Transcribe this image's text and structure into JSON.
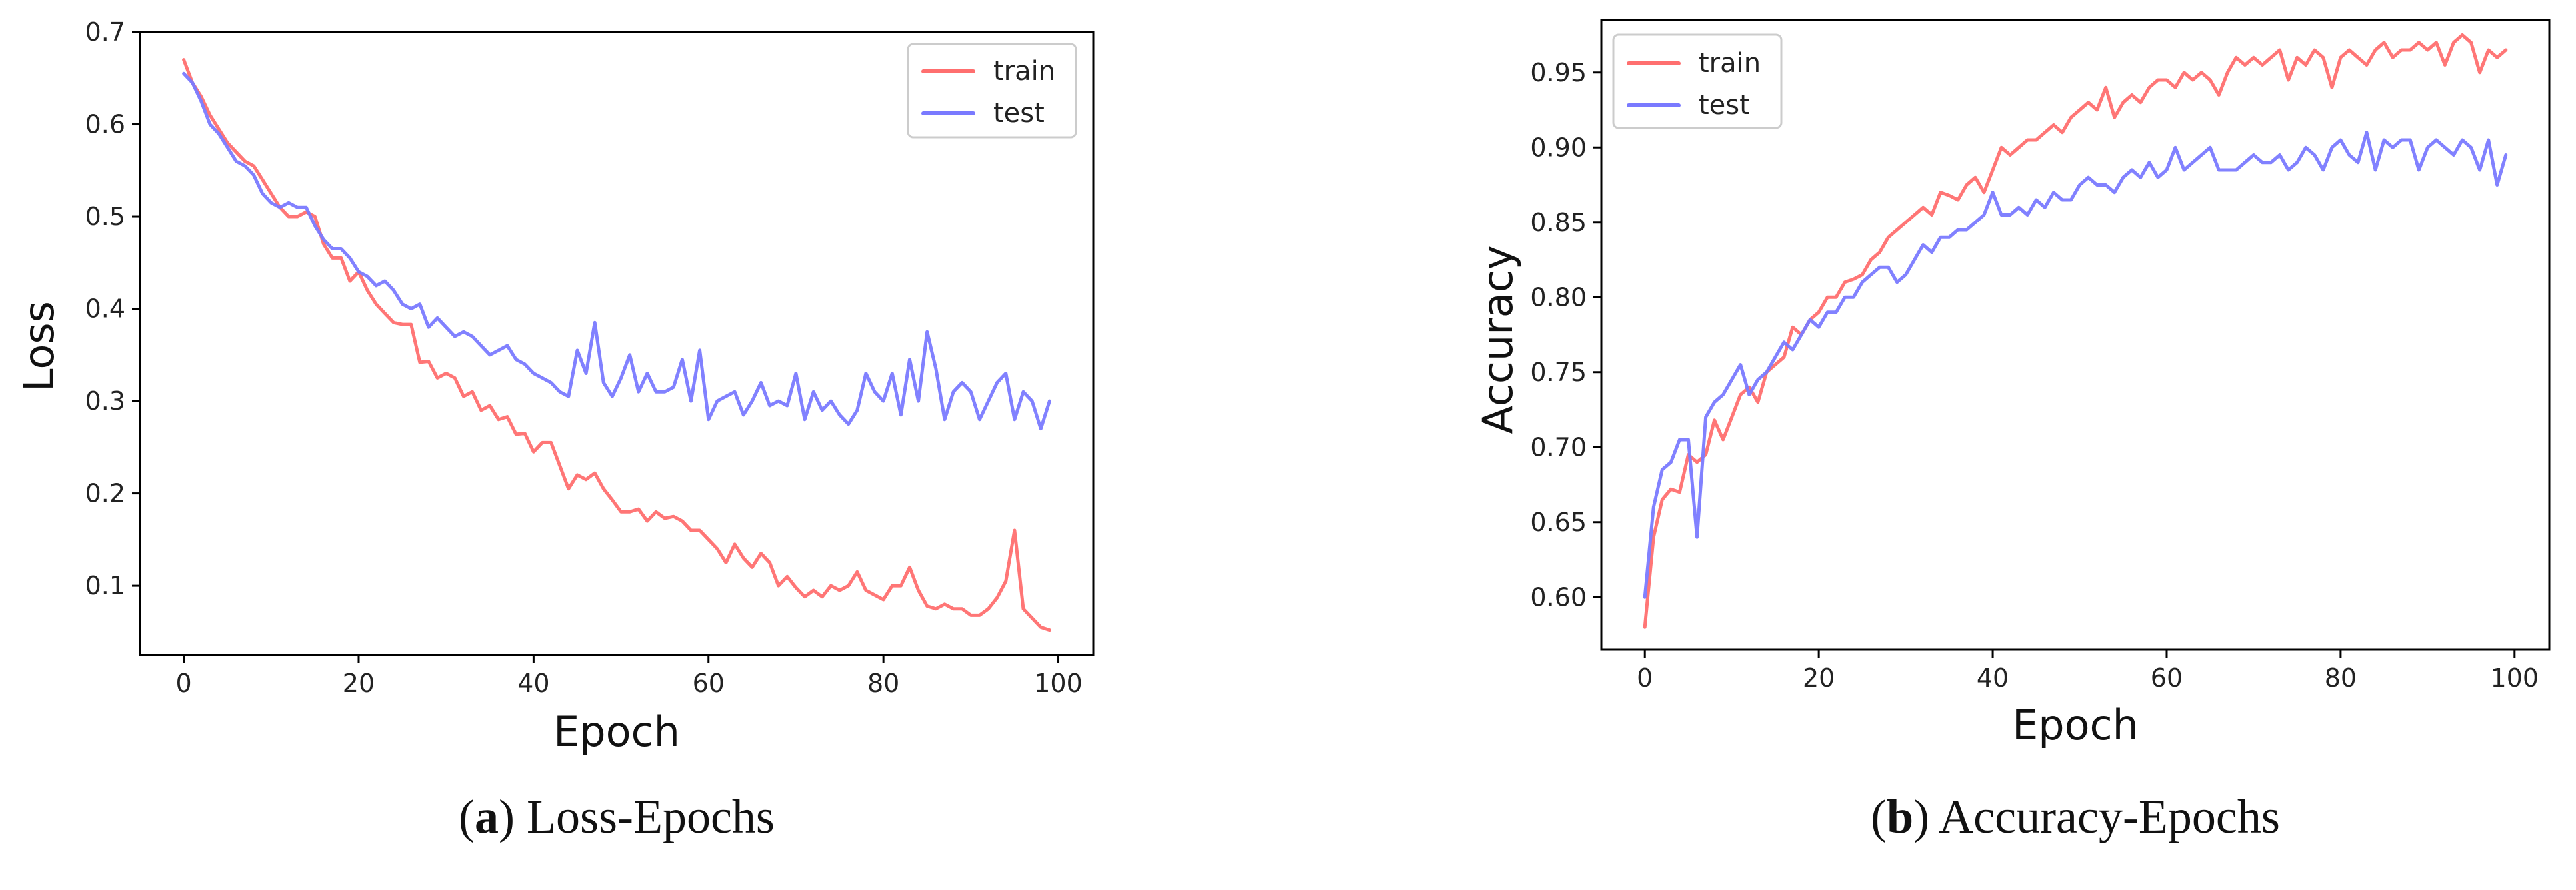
{
  "chart_data": [
    {
      "type": "line",
      "caption_letter": "a",
      "caption_text": "Loss-Epochs",
      "xlabel": "Epoch",
      "ylabel": "Loss",
      "xlim": [
        -5,
        104
      ],
      "ylim": [
        0.025,
        0.7
      ],
      "xticks": [
        0,
        20,
        40,
        60,
        80,
        100
      ],
      "yticks": [
        0.1,
        0.2,
        0.3,
        0.4,
        0.5,
        0.6,
        0.7
      ],
      "grid": false,
      "legend_position": "top-right",
      "series": [
        {
          "name": "train",
          "color": "#ff6f6f",
          "x": [
            0,
            1,
            2,
            3,
            4,
            5,
            6,
            7,
            8,
            9,
            10,
            11,
            12,
            13,
            14,
            15,
            16,
            17,
            18,
            19,
            20,
            21,
            22,
            23,
            24,
            25,
            26,
            27,
            28,
            29,
            30,
            31,
            32,
            33,
            34,
            35,
            36,
            37,
            38,
            39,
            40,
            41,
            42,
            43,
            44,
            45,
            46,
            47,
            48,
            49,
            50,
            51,
            52,
            53,
            54,
            55,
            56,
            57,
            58,
            59,
            60,
            61,
            62,
            63,
            64,
            65,
            66,
            67,
            68,
            69,
            70,
            71,
            72,
            73,
            74,
            75,
            76,
            77,
            78,
            79,
            80,
            81,
            82,
            83,
            84,
            85,
            86,
            87,
            88,
            89,
            90,
            91,
            92,
            93,
            94,
            95,
            96,
            97,
            98,
            99
          ],
          "values": [
            0.67,
            0.645,
            0.63,
            0.61,
            0.595,
            0.58,
            0.57,
            0.56,
            0.555,
            0.54,
            0.525,
            0.51,
            0.5,
            0.5,
            0.505,
            0.5,
            0.47,
            0.455,
            0.455,
            0.43,
            0.44,
            0.42,
            0.405,
            0.395,
            0.385,
            0.383,
            0.383,
            0.342,
            0.343,
            0.325,
            0.33,
            0.325,
            0.305,
            0.31,
            0.29,
            0.295,
            0.28,
            0.283,
            0.264,
            0.265,
            0.245,
            0.255,
            0.255,
            0.23,
            0.205,
            0.22,
            0.215,
            0.222,
            0.205,
            0.193,
            0.18,
            0.18,
            0.183,
            0.17,
            0.18,
            0.173,
            0.175,
            0.17,
            0.16,
            0.16,
            0.15,
            0.14,
            0.125,
            0.145,
            0.13,
            0.12,
            0.135,
            0.125,
            0.1,
            0.11,
            0.098,
            0.088,
            0.095,
            0.088,
            0.1,
            0.095,
            0.1,
            0.115,
            0.095,
            0.09,
            0.085,
            0.1,
            0.1,
            0.12,
            0.095,
            0.078,
            0.075,
            0.08,
            0.075,
            0.075,
            0.068,
            0.068,
            0.075,
            0.087,
            0.105,
            0.16,
            0.075,
            0.065,
            0.055,
            0.052
          ]
        },
        {
          "name": "test",
          "color": "#7a7aff",
          "x": [
            0,
            1,
            2,
            3,
            4,
            5,
            6,
            7,
            8,
            9,
            10,
            11,
            12,
            13,
            14,
            15,
            16,
            17,
            18,
            19,
            20,
            21,
            22,
            23,
            24,
            25,
            26,
            27,
            28,
            29,
            30,
            31,
            32,
            33,
            34,
            35,
            36,
            37,
            38,
            39,
            40,
            41,
            42,
            43,
            44,
            45,
            46,
            47,
            48,
            49,
            50,
            51,
            52,
            53,
            54,
            55,
            56,
            57,
            58,
            59,
            60,
            61,
            62,
            63,
            64,
            65,
            66,
            67,
            68,
            69,
            70,
            71,
            72,
            73,
            74,
            75,
            76,
            77,
            78,
            79,
            80,
            81,
            82,
            83,
            84,
            85,
            86,
            87,
            88,
            89,
            90,
            91,
            92,
            93,
            94,
            95,
            96,
            97,
            98,
            99
          ],
          "values": [
            0.655,
            0.645,
            0.625,
            0.6,
            0.59,
            0.575,
            0.56,
            0.555,
            0.545,
            0.525,
            0.515,
            0.51,
            0.515,
            0.51,
            0.51,
            0.49,
            0.475,
            0.465,
            0.465,
            0.455,
            0.44,
            0.435,
            0.425,
            0.43,
            0.42,
            0.405,
            0.4,
            0.405,
            0.38,
            0.39,
            0.38,
            0.37,
            0.375,
            0.37,
            0.36,
            0.35,
            0.355,
            0.36,
            0.345,
            0.34,
            0.33,
            0.325,
            0.32,
            0.31,
            0.305,
            0.355,
            0.33,
            0.385,
            0.32,
            0.305,
            0.325,
            0.35,
            0.31,
            0.33,
            0.31,
            0.31,
            0.315,
            0.345,
            0.3,
            0.355,
            0.28,
            0.3,
            0.305,
            0.31,
            0.285,
            0.3,
            0.32,
            0.295,
            0.3,
            0.295,
            0.33,
            0.28,
            0.31,
            0.29,
            0.3,
            0.285,
            0.275,
            0.29,
            0.33,
            0.31,
            0.3,
            0.33,
            0.285,
            0.345,
            0.3,
            0.375,
            0.335,
            0.28,
            0.31,
            0.32,
            0.31,
            0.28,
            0.3,
            0.32,
            0.33,
            0.28,
            0.31,
            0.3,
            0.27,
            0.3
          ]
        }
      ]
    },
    {
      "type": "line",
      "caption_letter": "b",
      "caption_text": "Accuracy-Epochs",
      "xlabel": "Epoch",
      "ylabel": "Accuracy",
      "xlim": [
        -5,
        104
      ],
      "ylim": [
        0.565,
        0.985
      ],
      "xticks": [
        0,
        20,
        40,
        60,
        80,
        100
      ],
      "yticks": [
        0.6,
        0.65,
        0.7,
        0.75,
        0.8,
        0.85,
        0.9,
        0.95
      ],
      "grid": false,
      "legend_position": "top-left",
      "series": [
        {
          "name": "train",
          "color": "#ff6f6f",
          "x": [
            0,
            1,
            2,
            3,
            4,
            5,
            6,
            7,
            8,
            9,
            10,
            11,
            12,
            13,
            14,
            15,
            16,
            17,
            18,
            19,
            20,
            21,
            22,
            23,
            24,
            25,
            26,
            27,
            28,
            29,
            30,
            31,
            32,
            33,
            34,
            35,
            36,
            37,
            38,
            39,
            40,
            41,
            42,
            43,
            44,
            45,
            46,
            47,
            48,
            49,
            50,
            51,
            52,
            53,
            54,
            55,
            56,
            57,
            58,
            59,
            60,
            61,
            62,
            63,
            64,
            65,
            66,
            67,
            68,
            69,
            70,
            71,
            72,
            73,
            74,
            75,
            76,
            77,
            78,
            79,
            80,
            81,
            82,
            83,
            84,
            85,
            86,
            87,
            88,
            89,
            90,
            91,
            92,
            93,
            94,
            95,
            96,
            97,
            98,
            99
          ],
          "values": [
            0.58,
            0.64,
            0.665,
            0.672,
            0.67,
            0.695,
            0.69,
            0.695,
            0.718,
            0.705,
            0.72,
            0.735,
            0.74,
            0.73,
            0.75,
            0.755,
            0.76,
            0.78,
            0.775,
            0.785,
            0.79,
            0.8,
            0.8,
            0.81,
            0.812,
            0.815,
            0.825,
            0.83,
            0.84,
            0.845,
            0.85,
            0.855,
            0.86,
            0.855,
            0.87,
            0.868,
            0.865,
            0.875,
            0.88,
            0.87,
            0.885,
            0.9,
            0.895,
            0.9,
            0.905,
            0.905,
            0.91,
            0.915,
            0.91,
            0.92,
            0.925,
            0.93,
            0.925,
            0.94,
            0.92,
            0.93,
            0.935,
            0.93,
            0.94,
            0.945,
            0.945,
            0.94,
            0.95,
            0.945,
            0.95,
            0.945,
            0.935,
            0.95,
            0.96,
            0.955,
            0.96,
            0.955,
            0.96,
            0.965,
            0.945,
            0.96,
            0.955,
            0.965,
            0.96,
            0.94,
            0.96,
            0.965,
            0.96,
            0.955,
            0.965,
            0.97,
            0.96,
            0.965,
            0.965,
            0.97,
            0.965,
            0.97,
            0.955,
            0.97,
            0.975,
            0.97,
            0.95,
            0.965,
            0.96,
            0.965
          ]
        },
        {
          "name": "test",
          "color": "#7a7aff",
          "x": [
            0,
            1,
            2,
            3,
            4,
            5,
            6,
            7,
            8,
            9,
            10,
            11,
            12,
            13,
            14,
            15,
            16,
            17,
            18,
            19,
            20,
            21,
            22,
            23,
            24,
            25,
            26,
            27,
            28,
            29,
            30,
            31,
            32,
            33,
            34,
            35,
            36,
            37,
            38,
            39,
            40,
            41,
            42,
            43,
            44,
            45,
            46,
            47,
            48,
            49,
            50,
            51,
            52,
            53,
            54,
            55,
            56,
            57,
            58,
            59,
            60,
            61,
            62,
            63,
            64,
            65,
            66,
            67,
            68,
            69,
            70,
            71,
            72,
            73,
            74,
            75,
            76,
            77,
            78,
            79,
            80,
            81,
            82,
            83,
            84,
            85,
            86,
            87,
            88,
            89,
            90,
            91,
            92,
            93,
            94,
            95,
            96,
            97,
            98,
            99
          ],
          "values": [
            0.6,
            0.66,
            0.685,
            0.69,
            0.705,
            0.705,
            0.64,
            0.72,
            0.73,
            0.735,
            0.745,
            0.755,
            0.735,
            0.745,
            0.75,
            0.76,
            0.77,
            0.765,
            0.775,
            0.785,
            0.78,
            0.79,
            0.79,
            0.8,
            0.8,
            0.81,
            0.815,
            0.82,
            0.82,
            0.81,
            0.815,
            0.825,
            0.835,
            0.83,
            0.84,
            0.84,
            0.845,
            0.845,
            0.85,
            0.855,
            0.87,
            0.855,
            0.855,
            0.86,
            0.855,
            0.865,
            0.86,
            0.87,
            0.865,
            0.865,
            0.875,
            0.88,
            0.875,
            0.875,
            0.87,
            0.88,
            0.885,
            0.88,
            0.89,
            0.88,
            0.885,
            0.9,
            0.885,
            0.89,
            0.895,
            0.9,
            0.885,
            0.885,
            0.885,
            0.89,
            0.895,
            0.89,
            0.89,
            0.895,
            0.885,
            0.89,
            0.9,
            0.895,
            0.885,
            0.9,
            0.905,
            0.895,
            0.89,
            0.91,
            0.885,
            0.905,
            0.9,
            0.905,
            0.905,
            0.885,
            0.9,
            0.905,
            0.9,
            0.895,
            0.905,
            0.9,
            0.885,
            0.905,
            0.875,
            0.895
          ]
        }
      ]
    }
  ]
}
